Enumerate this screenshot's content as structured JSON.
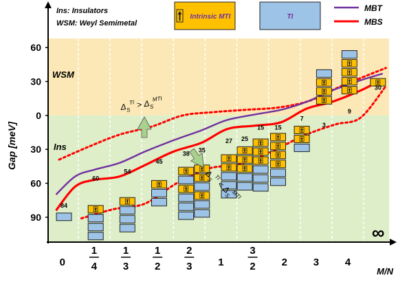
{
  "header": {
    "legend_lines": [
      "Ins: Insulators",
      "WSM: Weyl Semimetal"
    ],
    "box_mti_label": "Intrinsic MTI",
    "box_ti_label": "TI"
  },
  "chart_data": {
    "type": "line",
    "title": "",
    "xlabel": "M/N",
    "ylabel": "Gap [meV]",
    "x_ticks": [
      {
        "x": 0,
        "label": "0"
      },
      {
        "x": 1,
        "num": "1",
        "den": "4"
      },
      {
        "x": 2,
        "num": "1",
        "den": "3"
      },
      {
        "x": 3,
        "num": "1",
        "den": "2"
      },
      {
        "x": 4,
        "num": "2",
        "den": "3"
      },
      {
        "x": 5,
        "label": "1"
      },
      {
        "x": 6,
        "num": "3",
        "den": "2"
      },
      {
        "x": 7,
        "label": "2"
      },
      {
        "x": 8,
        "label": "3"
      },
      {
        "x": 9,
        "label": "4"
      },
      {
        "x": 10,
        "label": "∞"
      }
    ],
    "y_tick_labels": [
      "60",
      "30",
      "0",
      "30",
      "60",
      "90"
    ],
    "y_tick_values": [
      60,
      30,
      0,
      -30,
      -60,
      -90
    ],
    "ylim": [
      -112,
      68
    ],
    "xlim": [
      -0.45,
      10.3
    ],
    "regions": [
      {
        "label": "WSM",
        "from": 0,
        "to": 68,
        "color": "#fbe8b6"
      },
      {
        "label": "Ins",
        "from": -112,
        "to": 0,
        "color": "#ddeec8"
      }
    ],
    "series": [
      {
        "name": "MBT",
        "color": "#7030a0",
        "x": [
          -0.2,
          0.4,
          1.0,
          1.8,
          2.6,
          3.5,
          4.4,
          5.2,
          6.1,
          6.9,
          7.7,
          8.5,
          9.4,
          10.1
        ],
        "y": [
          -70,
          -54,
          -48,
          -42,
          -32,
          -22,
          -13,
          -4,
          1,
          5,
          12,
          22,
          31,
          37
        ]
      },
      {
        "name": "MBS",
        "color": "#ff0000",
        "x": [
          -0.2,
          0.4,
          1.0,
          1.8,
          2.6,
          3.5,
          4.4,
          5.2,
          6.1,
          6.9,
          7.7,
          8.5,
          9.4,
          10.1
        ],
        "y": [
          -84,
          -63,
          -57,
          -54,
          -44,
          -32,
          -24,
          -12,
          -9,
          -6,
          6,
          12,
          22,
          32
        ]
      }
    ],
    "bounds_upper": {
      "color": "#ff0000",
      "x": [
        -0.1,
        0.8,
        1.8,
        2.8,
        3.8,
        4.8,
        5.8,
        6.8,
        7.8,
        8.8,
        10.2
      ],
      "y": [
        -39,
        -28,
        -17,
        -10,
        0,
        3,
        5,
        7,
        13,
        26,
        42
      ]
    },
    "bounds_lower": {
      "color": "#ff0000",
      "x": [
        0.6,
        1.6,
        2.6,
        3.6,
        4.6,
        5.6,
        6.6,
        7.6,
        8.6,
        9.4,
        10.2
      ],
      "y": [
        -91,
        -83,
        -78,
        -60,
        -47,
        -43,
        -32,
        -18,
        -8,
        -2,
        26
      ]
    },
    "gap_labels": [
      {
        "x": 0.05,
        "y": -84,
        "text": "84"
      },
      {
        "x": 1.05,
        "y": -60,
        "text": "60"
      },
      {
        "x": 2.05,
        "y": -54,
        "text": "54"
      },
      {
        "x": 3.05,
        "y": -45,
        "text": "45"
      },
      {
        "x": 3.9,
        "y": -38,
        "text": "38"
      },
      {
        "x": 4.4,
        "y": -35,
        "text": "35"
      },
      {
        "x": 5.25,
        "y": -27,
        "text": "27"
      },
      {
        "x": 5.75,
        "y": -25,
        "text": "25"
      },
      {
        "x": 6.25,
        "y": -15,
        "text": "15"
      },
      {
        "x": 6.8,
        "y": -15,
        "text": "15"
      },
      {
        "x": 7.55,
        "y": -7,
        "text": "7"
      },
      {
        "x": 8.25,
        "y": -3,
        "text": "3"
      },
      {
        "x": 9.05,
        "y": 9,
        "text": "9"
      },
      {
        "x": 9.95,
        "y": 30,
        "text": "30"
      }
    ],
    "annotations": {
      "ins": "Ins",
      "wsm": "WSM",
      "delta_upper": "Δ_S^TI > Δ_S^MTI",
      "delta_lower": "Δ_S^TI < Δ_S^MTI"
    },
    "stacks": [
      {
        "x": 0.05,
        "y0": -93,
        "layers": [
          "TI"
        ]
      },
      {
        "x": 1.05,
        "y0": -110,
        "layers": [
          "TI",
          "TI",
          "TI",
          "MTI"
        ]
      },
      {
        "x": 2.05,
        "y0": -103,
        "layers": [
          "TI",
          "TI",
          "TI",
          "MTI"
        ]
      },
      {
        "x": 3.05,
        "y0": -80,
        "layers": [
          "TI",
          "TI",
          "MTI"
        ]
      },
      {
        "x": 3.9,
        "y0": -92,
        "layers": [
          "TI",
          "TI",
          "TI",
          "MTI",
          "TI",
          "MTI"
        ]
      },
      {
        "x": 4.4,
        "y0": -90,
        "layers": [
          "TI",
          "TI",
          "MTI",
          "TI",
          "MTI",
          "MTI"
        ]
      },
      {
        "x": 5.25,
        "y0": -73,
        "layers": [
          "TI",
          "TI",
          "TI",
          "MTI",
          "MTI"
        ]
      },
      {
        "x": 5.75,
        "y0": -66,
        "layers": [
          "TI",
          "TI",
          "MTI",
          "MTI",
          "MTI"
        ]
      },
      {
        "x": 6.25,
        "y0": -67,
        "layers": [
          "TI",
          "TI",
          "TI",
          "MTI",
          "MTI",
          "MTI"
        ]
      },
      {
        "x": 6.8,
        "y0": -62,
        "layers": [
          "TI",
          "TI",
          "MTI",
          "MTI",
          "MTI",
          "MTI"
        ]
      },
      {
        "x": 7.55,
        "y0": -32,
        "layers": [
          "TI",
          "MTI",
          "MTI"
        ]
      },
      {
        "x": 8.25,
        "y0": 10,
        "layers": [
          "MTI",
          "MTI",
          "MTI",
          "TI"
        ]
      },
      {
        "x": 9.05,
        "y0": 19,
        "layers": [
          "MTI",
          "MTI",
          "MTI",
          "MTI",
          "TI"
        ]
      },
      {
        "x": 9.95,
        "y0": 26,
        "layers": [
          "MTI"
        ]
      }
    ],
    "colors": {
      "mti_fill": "#ffc000",
      "ti_fill": "#9dc3e6",
      "stroke": "#222222",
      "arrow_fill": "#a9d18e"
    }
  }
}
